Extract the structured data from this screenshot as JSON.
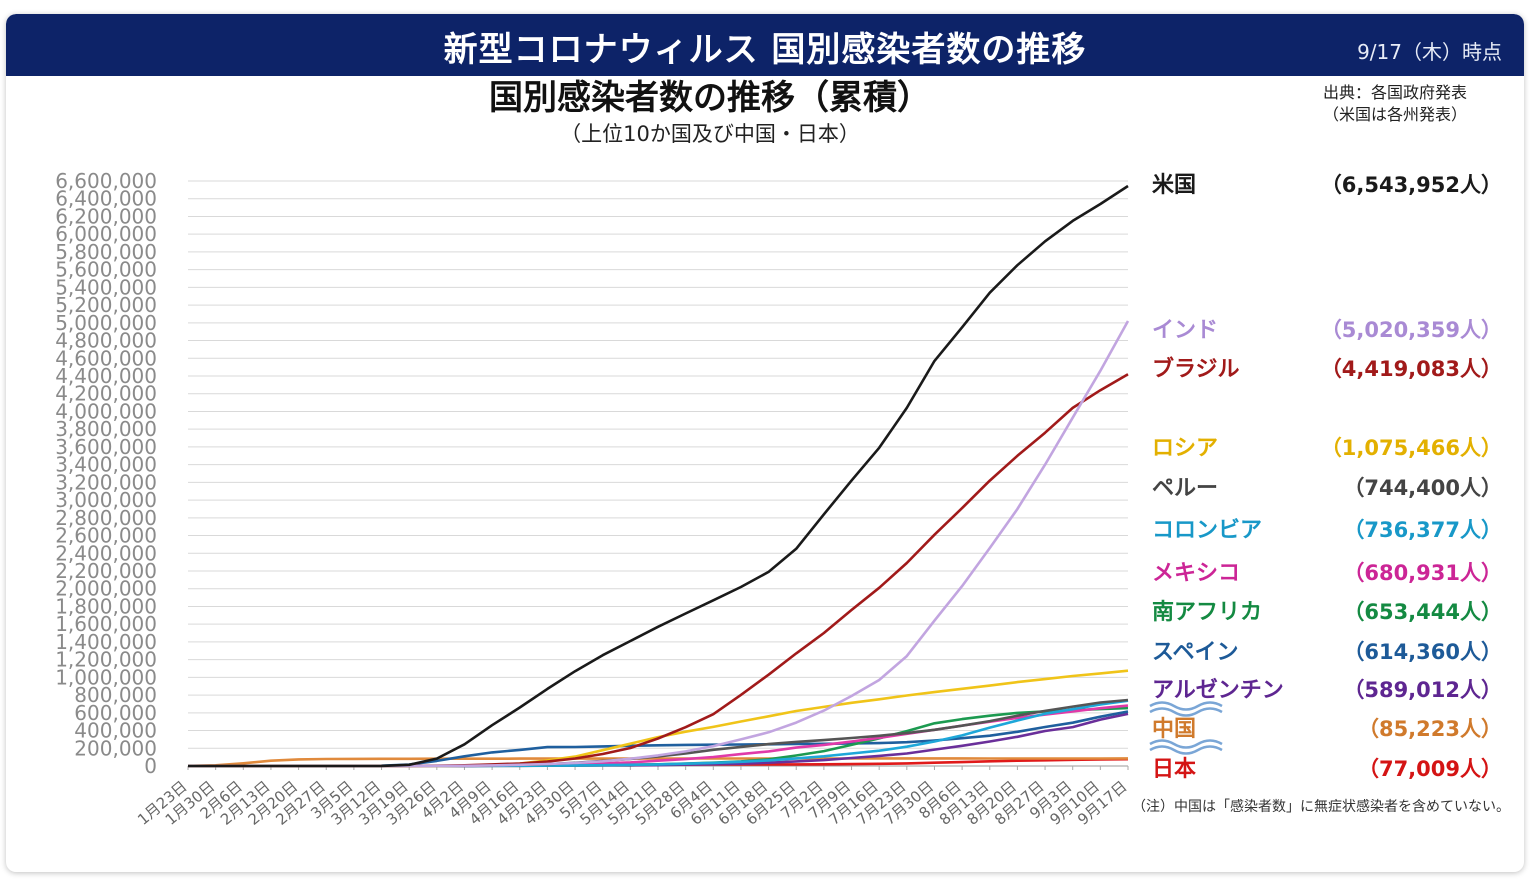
{
  "header": {
    "title": "新型コロナウィルス 国別感染者数の推移",
    "date": "9/17（木）時点"
  },
  "source": {
    "line1": "出典：各国政府発表",
    "line2": "（米国は各州発表）"
  },
  "note": "（注）中国は「感染者数」に無症状感染者を含めていない。",
  "colors": {
    "banner": "#0d2368",
    "grid": "#d9d9d9"
  },
  "chart_data": {
    "type": "line",
    "title": "国別感染者数の推移（累積）",
    "subtitle": "（上位10か国及び中国・日本）",
    "ylim": [
      0,
      6600000
    ],
    "y_ticks": [
      "0",
      "200,000",
      "400,000",
      "600,000",
      "800,000",
      "1,000,000",
      "1,200,000",
      "1,400,000",
      "1,600,000",
      "1,800,000",
      "2,000,000",
      "2,200,000",
      "2,400,000",
      "2,600,000",
      "2,800,000",
      "3,000,000",
      "3,200,000",
      "3,400,000",
      "3,600,000",
      "3,800,000",
      "4,000,000",
      "4,200,000",
      "4,400,000",
      "4,600,000",
      "4,800,000",
      "5,000,000",
      "5,200,000",
      "5,400,000",
      "5,600,000",
      "5,800,000",
      "6,000,000",
      "6,200,000",
      "6,400,000",
      "6,600,000"
    ],
    "x_ticks": [
      "1月23日",
      "1月30日",
      "2月6日",
      "2月13日",
      "2月20日",
      "2月27日",
      "3月5日",
      "3月12日",
      "3月19日",
      "3月26日",
      "4月2日",
      "4月9日",
      "4月16日",
      "4月23日",
      "4月30日",
      "5月7日",
      "5月14日",
      "5月21日",
      "5月28日",
      "6月4日",
      "6月11日",
      "6月18日",
      "6月25日",
      "7月2日",
      "7月9日",
      "7月16日",
      "7月23日",
      "7月30日",
      "8月6日",
      "8月13日",
      "8月20日",
      "8月27日",
      "9月3日",
      "9月10日",
      "9月17日"
    ],
    "grid": true,
    "legend_position": "right",
    "series": [
      {
        "name": "米国",
        "value_label": "（6,543,952人）",
        "color": "#1a1a1a",
        "label_color": "#1a1a1a",
        "values": [
          0,
          0,
          0,
          0,
          0,
          0,
          300,
          1600,
          14000,
          83000,
          245000,
          460000,
          660000,
          870000,
          1070000,
          1250000,
          1410000,
          1570000,
          1720000,
          1870000,
          2020000,
          2190000,
          2450000,
          2840000,
          3220000,
          3590000,
          4040000,
          4570000,
          4950000,
          5340000,
          5650000,
          5920000,
          6150000,
          6340000,
          6543952
        ]
      },
      {
        "name": "インド",
        "value_label": "（5,020,359人）",
        "color": "#c2a5e0",
        "label_color": "#a98ad4",
        "values": [
          0,
          0,
          0,
          0,
          0,
          0,
          30,
          70,
          200,
          700,
          2100,
          6700,
          13000,
          22000,
          34000,
          53000,
          82000,
          120000,
          165000,
          225000,
          300000,
          380000,
          490000,
          625000,
          790000,
          970000,
          1240000,
          1640000,
          2030000,
          2460000,
          2900000,
          3400000,
          3930000,
          4460000,
          5020359
        ]
      },
      {
        "name": "ブラジル",
        "value_label": "（4,419,083人）",
        "color": "#a11a1a",
        "label_color": "#a11a1a",
        "values": [
          0,
          0,
          0,
          0,
          0,
          1,
          8,
          77,
          620,
          2900,
          8000,
          18000,
          28000,
          50000,
          85000,
          135000,
          203000,
          310000,
          438000,
          584000,
          802000,
          1030000,
          1270000,
          1500000,
          1760000,
          2010000,
          2290000,
          2610000,
          2910000,
          3220000,
          3500000,
          3760000,
          4040000,
          4240000,
          4419083
        ]
      },
      {
        "name": "ロシア",
        "value_label": "（1,075,466人）",
        "color": "#f0c419",
        "label_color": "#e3b000",
        "values": [
          0,
          0,
          0,
          0,
          0,
          0,
          4,
          28,
          199,
          840,
          3550,
          10100,
          27900,
          62700,
          106000,
          178000,
          252000,
          326000,
          387000,
          441000,
          502000,
          561000,
          620000,
          667000,
          713000,
          752000,
          795000,
          834000,
          871000,
          907000,
          946000,
          980000,
          1015000,
          1045000,
          1075466
        ]
      },
      {
        "name": "ペルー",
        "value_label": "（744,400人）",
        "color": "#555555",
        "label_color": "#444444",
        "values": [
          0,
          0,
          0,
          0,
          0,
          0,
          0,
          15,
          234,
          580,
          1600,
          5900,
          14000,
          20000,
          36000,
          58000,
          80000,
          108000,
          141000,
          183000,
          215000,
          247000,
          272000,
          292000,
          316000,
          341000,
          371000,
          408000,
          455000,
          507000,
          567000,
          622000,
          670000,
          716000,
          744400
        ]
      },
      {
        "name": "コロンビア",
        "value_label": "（736,377人）",
        "color": "#1ea7d9",
        "label_color": "#1898c8",
        "values": [
          0,
          0,
          0,
          0,
          0,
          0,
          0,
          9,
          128,
          490,
          1160,
          2470,
          3230,
          4880,
          6500,
          9400,
          13600,
          18300,
          25400,
          35200,
          46900,
          63200,
          86000,
          110000,
          141000,
          173000,
          218000,
          276000,
          345000,
          433000,
          513000,
          590000,
          641000,
          694000,
          736377
        ]
      },
      {
        "name": "メキシコ",
        "value_label": "（680,931人）",
        "color": "#e03aa8",
        "label_color": "#cc2596",
        "values": [
          0,
          0,
          0,
          0,
          0,
          0,
          5,
          12,
          118,
          475,
          1510,
          3440,
          6300,
          11600,
          19200,
          29600,
          40200,
          59600,
          78000,
          101000,
          134000,
          165000,
          208000,
          238000,
          275000,
          318000,
          362000,
          408000,
          456000,
          500000,
          543000,
          580000,
          616000,
          652000,
          680931
        ]
      },
      {
        "name": "南アフリカ",
        "value_label": "（653,444人）",
        "color": "#1c9a50",
        "label_color": "#148a42",
        "values": [
          0,
          0,
          0,
          0,
          0,
          0,
          1,
          17,
          150,
          930,
          1460,
          1940,
          2600,
          3950,
          5350,
          8230,
          12100,
          19100,
          27400,
          37500,
          52000,
          76000,
          118000,
          168000,
          238000,
          312000,
          394000,
          482000,
          529000,
          568000,
          599000,
          616000,
          630000,
          642000,
          653444
        ]
      },
      {
        "name": "スペイン",
        "value_label": "（614,360人）",
        "color": "#1f5f9e",
        "label_color": "#1d5a98",
        "values": [
          0,
          0,
          0,
          1,
          2,
          32,
          282,
          3000,
          17000,
          57000,
          110000,
          153000,
          182000,
          213000,
          214000,
          221000,
          228000,
          233000,
          238000,
          240000,
          243000,
          245000,
          248000,
          250000,
          254000,
          258000,
          268000,
          288000,
          314000,
          342000,
          386000,
          440000,
          488000,
          556000,
          614360
        ]
      },
      {
        "name": "アルゼンチン",
        "value_label": "（589,012人）",
        "color": "#6a2f9a",
        "label_color": "#5e2691",
        "values": [
          0,
          0,
          0,
          0,
          0,
          0,
          1,
          31,
          128,
          502,
          1130,
          1800,
          2500,
          3400,
          4400,
          5600,
          7100,
          9300,
          15400,
          20200,
          26400,
          37500,
          52400,
          67100,
          90700,
          114000,
          141000,
          185000,
          228000,
          276000,
          330000,
          395000,
          439000,
          524000,
          589012
        ]
      },
      {
        "name": "中国",
        "value_label": "（85,223人）",
        "color": "#e08a3c",
        "label_color": "#d07a2c",
        "values": [
          571,
          7700,
          31000,
          60000,
          75000,
          78700,
          80500,
          80800,
          81200,
          81900,
          82400,
          82900,
          83400,
          83900,
          83900,
          83950,
          84000,
          84060,
          84100,
          84160,
          84200,
          84400,
          84700,
          84800,
          84900,
          85200,
          85400,
          85600,
          85700,
          84800,
          84900,
          85000,
          85100,
          85150,
          85223
        ]
      },
      {
        "name": "日本",
        "value_label": "（77,009人）",
        "color": "#e01a1a",
        "label_color": "#d41414",
        "values": [
          1,
          11,
          25,
          33,
          105,
          228,
          360,
          620,
          950,
          1390,
          2600,
          5500,
          9300,
          12400,
          14100,
          15600,
          16300,
          16500,
          16700,
          17000,
          17300,
          17700,
          18200,
          19000,
          21000,
          24600,
          29400,
          36900,
          44000,
          52500,
          59500,
          64800,
          69600,
          73600,
          77009
        ]
      }
    ]
  }
}
